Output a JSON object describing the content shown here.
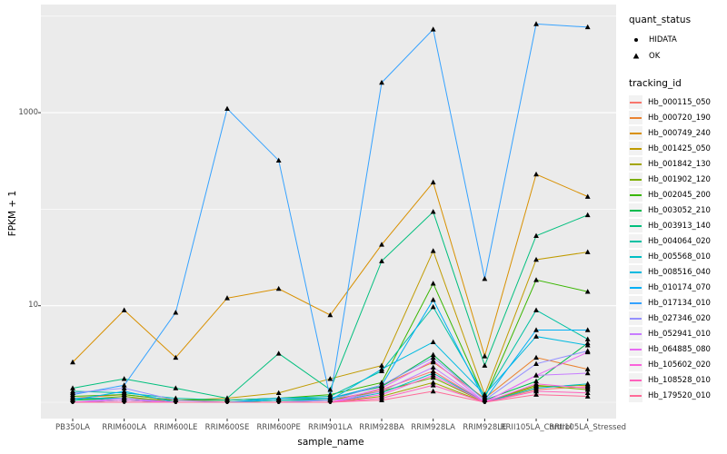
{
  "figure": {
    "background": "#FFFFFF",
    "panel_background": "#EBEBEB",
    "grid_color": "#FFFFFF",
    "axis_text_color": "#4D4D4D",
    "marker_color": "#000000"
  },
  "legend": {
    "quant_status": {
      "title": "quant_status",
      "items": [
        {
          "label": "HIDATA",
          "marker": "circle"
        },
        {
          "label": "OK",
          "marker": "triangle"
        }
      ]
    },
    "tracking": {
      "title": "tracking_id"
    }
  },
  "chart_data": {
    "type": "line",
    "title": "",
    "xlabel": "sample_name",
    "ylabel": "FPKM + 1",
    "y_scale": "log10",
    "ylim": [
      0.66,
      13000
    ],
    "grid": true,
    "legend_position": "right",
    "y_major_ticks": [
      {
        "label": "1000",
        "value": 1000
      },
      {
        "label": "10",
        "value": 10
      }
    ],
    "y_minor_values": [
      1,
      100,
      10000
    ],
    "marker_rule": {
      "HIDATA": "circle",
      "OK": "triangle",
      "hidata_threshold": 1.02
    },
    "categories": [
      "PB350LA",
      "RRIM600LA",
      "RRIM600LE",
      "RRIM600SE",
      "RRIM600PE",
      "RRIM901LA",
      "RRIM928BA",
      "RRIM928LA",
      "RRIM928LE",
      "RRII105LA_Control",
      "RRII105LA_Stressed"
    ],
    "series": [
      {
        "name": "Hb_000115_050",
        "color": "#F8766D",
        "values": [
          1.0,
          1.05,
          1.0,
          1.0,
          1.0,
          1.05,
          1.35,
          2.1,
          1.0,
          1.35,
          1.45
        ]
      },
      {
        "name": "Hb_000720_190",
        "color": "#EA8331",
        "values": [
          1.1,
          1.2,
          1.05,
          1.05,
          1.1,
          1.1,
          1.5,
          2.6,
          1.1,
          2.9,
          2.2
        ]
      },
      {
        "name": "Hb_000749_240",
        "color": "#D89000",
        "values": [
          2.6,
          9.0,
          2.9,
          12,
          15,
          8.0,
          43,
          190,
          3.0,
          230,
          135
        ]
      },
      {
        "name": "Hb_001425_050",
        "color": "#C09B00",
        "values": [
          1.1,
          1.1,
          1.05,
          1.1,
          1.25,
          1.75,
          2.4,
          37,
          1.2,
          30,
          36
        ]
      },
      {
        "name": "Hb_001842_130",
        "color": "#A3A500",
        "values": [
          1.0,
          1.05,
          1.0,
          1.0,
          1.0,
          1.0,
          1.15,
          1.6,
          1.0,
          1.45,
          1.5
        ]
      },
      {
        "name": "Hb_001902_120",
        "color": "#7CAE00",
        "values": [
          1.05,
          1.15,
          1.0,
          1.0,
          1.05,
          1.05,
          1.3,
          1.8,
          1.0,
          1.5,
          1.35
        ]
      },
      {
        "name": "Hb_002045_200",
        "color": "#39B600",
        "values": [
          1.15,
          1.2,
          1.05,
          1.05,
          1.1,
          1.2,
          1.6,
          17,
          1.1,
          18.5,
          14
        ]
      },
      {
        "name": "Hb_003052_210",
        "color": "#00BB4E",
        "values": [
          1.05,
          1.1,
          1.0,
          1.0,
          1.05,
          1.1,
          1.45,
          3.1,
          1.05,
          1.65,
          4.1
        ]
      },
      {
        "name": "Hb_003913_140",
        "color": "#00BF7D",
        "values": [
          1.4,
          1.75,
          1.4,
          1.1,
          3.2,
          1.35,
          29,
          94,
          2.4,
          53,
          87
        ]
      },
      {
        "name": "Hb_004064_020",
        "color": "#00C1A3",
        "values": [
          1.3,
          1.25,
          1.1,
          1.05,
          1.1,
          1.15,
          2.1,
          9.7,
          1.15,
          9.0,
          4.5
        ]
      },
      {
        "name": "Hb_005568_010",
        "color": "#00BFC4",
        "values": [
          1.0,
          1.05,
          1.0,
          1.0,
          1.0,
          1.0,
          1.25,
          2.0,
          1.0,
          1.4,
          1.55
        ]
      },
      {
        "name": "Hb_008516_040",
        "color": "#00BAE0",
        "values": [
          1.1,
          1.1,
          1.0,
          1.0,
          1.05,
          1.05,
          2.2,
          4.2,
          1.2,
          4.8,
          3.9
        ]
      },
      {
        "name": "Hb_010174_070",
        "color": "#00B0F6",
        "values": [
          1.05,
          1.3,
          1.0,
          1.0,
          1.1,
          1.1,
          1.5,
          11.5,
          1.05,
          5.6,
          5.6
        ]
      },
      {
        "name": "Hb_017134_010",
        "color": "#35A2FF",
        "values": [
          1.2,
          1.5,
          8.5,
          1100,
          320,
          1.1,
          2050,
          7300,
          19,
          8300,
          7700
        ]
      },
      {
        "name": "Hb_027346_020",
        "color": "#9590FF",
        "values": [
          1.25,
          1.4,
          1.05,
          1.0,
          1.0,
          1.05,
          1.5,
          2.9,
          1.05,
          2.5,
          3.4
        ]
      },
      {
        "name": "Hb_052941_010",
        "color": "#C77CFF",
        "values": [
          1.0,
          1.1,
          1.0,
          1.0,
          1.0,
          1.0,
          1.3,
          2.3,
          1.0,
          1.9,
          2.0
        ]
      },
      {
        "name": "Hb_064885_080",
        "color": "#E76BF3",
        "values": [
          1.0,
          1.05,
          1.0,
          1.0,
          1.0,
          1.0,
          1.4,
          2.7,
          1.0,
          1.9,
          3.3
        ]
      },
      {
        "name": "Hb_105602_020",
        "color": "#FA62DB",
        "values": [
          1.0,
          1.0,
          1.0,
          1.0,
          1.0,
          1.0,
          1.2,
          1.9,
          1.0,
          1.55,
          1.4
        ]
      },
      {
        "name": "Hb_108528_010",
        "color": "#FF62BC",
        "values": [
          1.0,
          1.0,
          1.0,
          1.0,
          1.0,
          1.0,
          1.1,
          1.5,
          1.0,
          1.3,
          1.25
        ]
      },
      {
        "name": "Hb_179520_010",
        "color": "#FF6A98",
        "values": [
          1.0,
          1.0,
          1.0,
          1.0,
          1.0,
          1.0,
          1.05,
          1.3,
          1.0,
          1.2,
          1.15
        ]
      }
    ]
  }
}
